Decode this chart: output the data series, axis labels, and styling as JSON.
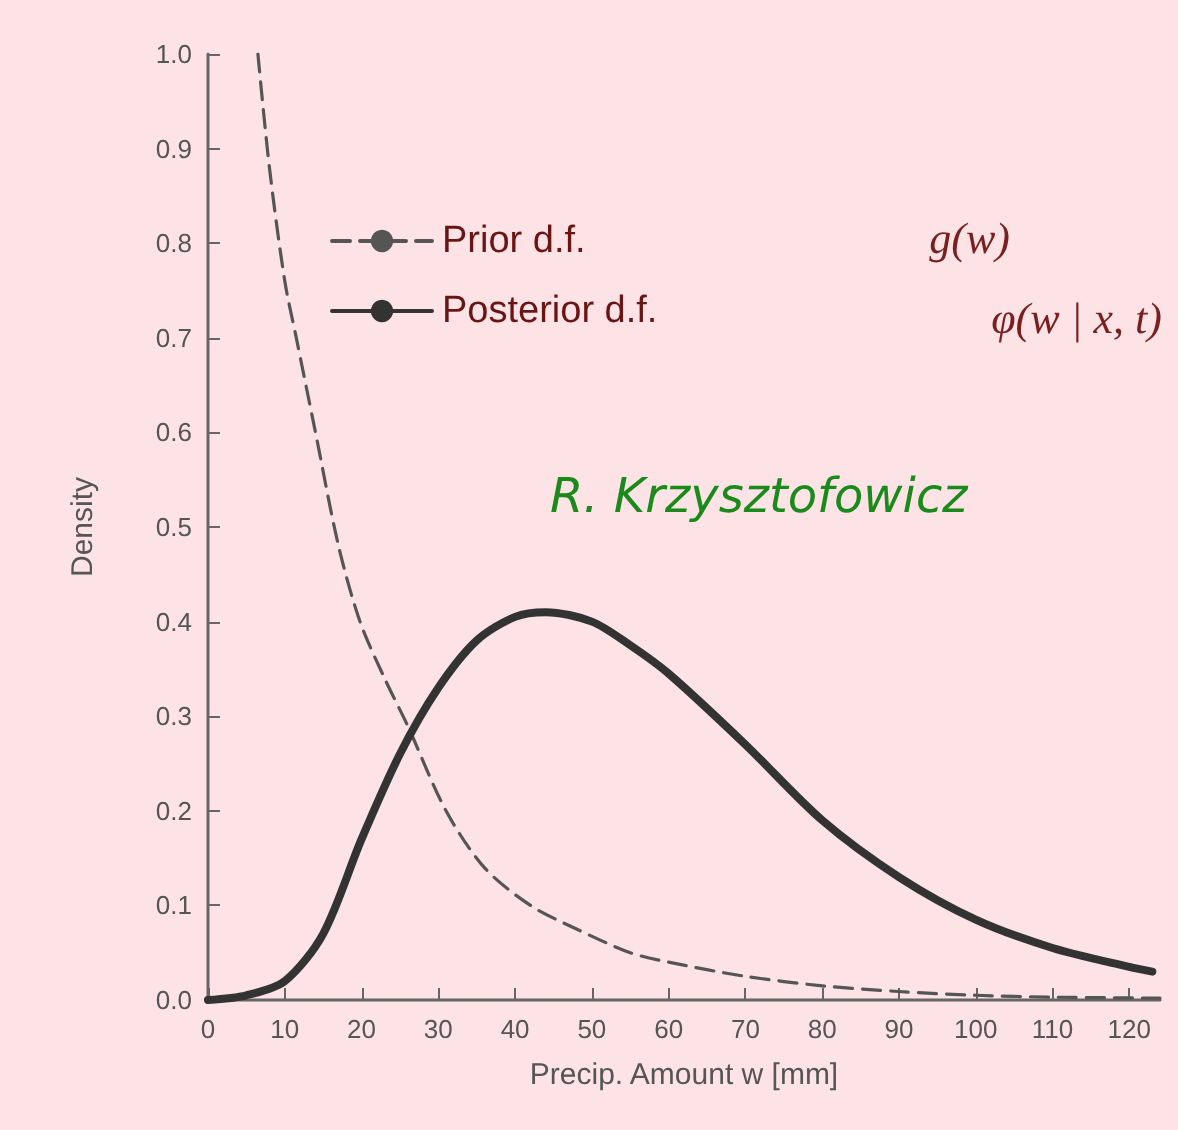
{
  "chart_data": {
    "type": "line",
    "xlabel": "Precip. Amount w [mm]",
    "ylabel": "Density",
    "xlim": [
      0,
      124
    ],
    "xticks": [
      0,
      10,
      20,
      30,
      40,
      50,
      60,
      70,
      80,
      90,
      100,
      110,
      120
    ],
    "ylim": [
      0,
      1
    ],
    "yticks": [
      {
        "value": 0,
        "label": "0.0"
      },
      0.1,
      0.2,
      0.3,
      0.4,
      0.5,
      0.6,
      0.7,
      0.8,
      0.9,
      {
        "value": 1,
        "label": "1.0"
      }
    ],
    "grid": false,
    "legend": "top left",
    "marker": "none",
    "annotations": [
      "g(w)",
      "φ(w | x, t)",
      "R. Krzysztofowicz"
    ],
    "series": [
      {
        "name": "Prior d.f.",
        "color": "#555555",
        "line_style": "dashed",
        "x": [
          6.5,
          8,
          10,
          11.5,
          14,
          17,
          19.8,
          23,
          26,
          31,
          36,
          42,
          48,
          55,
          60,
          70,
          80,
          90,
          100,
          110,
          124
        ],
        "values": [
          1.0,
          0.88,
          0.76,
          0.7,
          0.6,
          0.48,
          0.4,
          0.34,
          0.29,
          0.2,
          0.14,
          0.1,
          0.075,
          0.05,
          0.04,
          0.025,
          0.015,
          0.009,
          0.005,
          0.003,
          0.002
        ]
      },
      {
        "name": "Posterior d.f.",
        "color": "#333333",
        "line_style": "solid",
        "x": [
          0,
          5,
          10,
          15,
          20,
          25,
          30,
          35,
          40,
          44,
          50,
          55,
          60,
          70,
          80,
          90,
          100,
          110,
          120,
          123
        ],
        "values": [
          0,
          0.005,
          0.02,
          0.07,
          0.17,
          0.26,
          0.33,
          0.38,
          0.405,
          0.41,
          0.4,
          0.375,
          0.345,
          0.27,
          0.19,
          0.13,
          0.085,
          0.055,
          0.035,
          0.03
        ]
      }
    ]
  }
}
